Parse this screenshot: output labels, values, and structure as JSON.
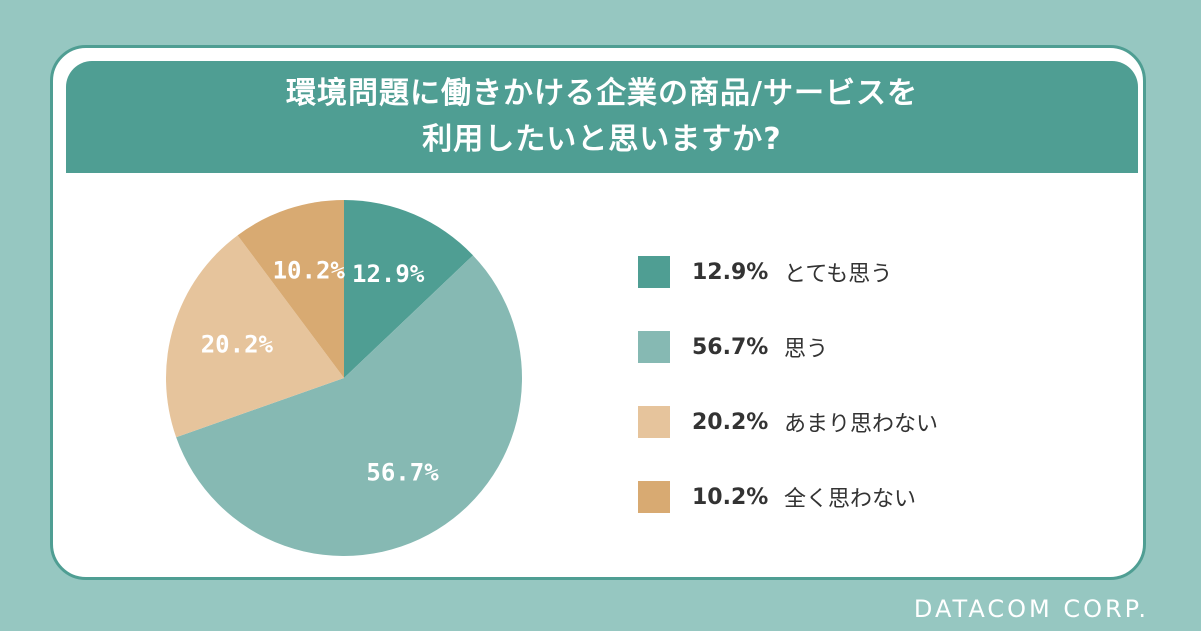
{
  "title_lines": [
    "環境問題に働きかける企業の商品/サービスを",
    "利用したいと思いますか?"
  ],
  "footer": "DATACOM CORP.",
  "chart_data": {
    "type": "pie",
    "title": "環境問題に働きかける企業の商品/サービスを利用したいと思いますか?",
    "start": "top",
    "direction": "clockwise",
    "slices": [
      {
        "label": "とても思う",
        "value": 12.9,
        "text": "12.9%",
        "color": "#4f9e93"
      },
      {
        "label": "思う",
        "value": 56.7,
        "text": "56.7%",
        "color": "#86b9b3"
      },
      {
        "label": "あまり思わない",
        "value": 20.2,
        "text": "20.2%",
        "color": "#e6c49c"
      },
      {
        "label": "全く思わない",
        "value": 10.2,
        "text": "10.2%",
        "color": "#d8aa72"
      }
    ],
    "legend_position": "right"
  }
}
